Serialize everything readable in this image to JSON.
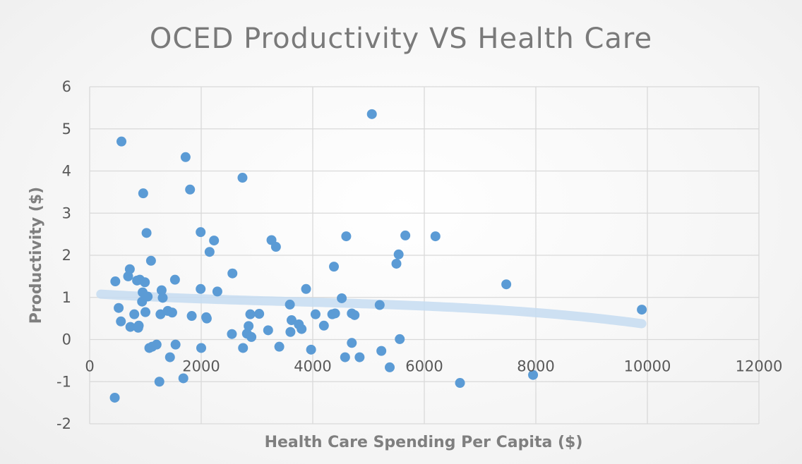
{
  "chart_data": {
    "type": "scatter",
    "title": "OCED Productivity VS Health Care",
    "xlabel": "Health Care Spending Per Capita ($)",
    "ylabel": "Productivity ($)",
    "xlim": [
      0,
      12000
    ],
    "ylim": [
      -2,
      6
    ],
    "xticks": [
      "0",
      "2000",
      "4000",
      "6000",
      "8000",
      "10000",
      "12000"
    ],
    "yticks": [
      "-2",
      "-1",
      "0",
      "1",
      "2",
      "3",
      "4",
      "5",
      "6"
    ],
    "grid": true,
    "legend": "none",
    "colors": {
      "points": "#5b9bd5",
      "trendline": "#c5dcf1"
    },
    "trendline": {
      "type": "polynomial",
      "x_range": [
        200,
        9900
      ]
    },
    "points": [
      [
        450,
        -1.38
      ],
      [
        460,
        1.38
      ],
      [
        520,
        0.75
      ],
      [
        560,
        0.43
      ],
      [
        570,
        4.7
      ],
      [
        690,
        1.5
      ],
      [
        720,
        1.67
      ],
      [
        730,
        0.3
      ],
      [
        800,
        0.6
      ],
      [
        850,
        1.4
      ],
      [
        870,
        0.28
      ],
      [
        880,
        0.33
      ],
      [
        900,
        1.42
      ],
      [
        940,
        0.9
      ],
      [
        950,
        1.12
      ],
      [
        960,
        3.47
      ],
      [
        990,
        1.36
      ],
      [
        1000,
        0.65
      ],
      [
        1020,
        2.53
      ],
      [
        1040,
        1.02
      ],
      [
        1070,
        -0.2
      ],
      [
        1100,
        1.87
      ],
      [
        1120,
        -0.17
      ],
      [
        1200,
        -0.12
      ],
      [
        1250,
        -1.0
      ],
      [
        1270,
        0.6
      ],
      [
        1290,
        1.17
      ],
      [
        1310,
        0.99
      ],
      [
        1400,
        0.68
      ],
      [
        1440,
        -0.42
      ],
      [
        1480,
        0.64
      ],
      [
        1530,
        1.42
      ],
      [
        1540,
        -0.12
      ],
      [
        1680,
        -0.92
      ],
      [
        1720,
        4.33
      ],
      [
        1800,
        3.56
      ],
      [
        1830,
        0.56
      ],
      [
        1990,
        1.2
      ],
      [
        1990,
        2.55
      ],
      [
        2000,
        -0.2
      ],
      [
        2090,
        0.53
      ],
      [
        2100,
        0.5
      ],
      [
        2150,
        2.08
      ],
      [
        2230,
        2.35
      ],
      [
        2290,
        1.14
      ],
      [
        2550,
        0.13
      ],
      [
        2560,
        1.57
      ],
      [
        2740,
        3.84
      ],
      [
        2750,
        -0.2
      ],
      [
        2820,
        0.14
      ],
      [
        2850,
        0.32
      ],
      [
        2880,
        0.6
      ],
      [
        2900,
        0.06
      ],
      [
        3040,
        0.61
      ],
      [
        3200,
        0.22
      ],
      [
        3260,
        2.36
      ],
      [
        3340,
        2.2
      ],
      [
        3400,
        -0.17
      ],
      [
        3590,
        0.83
      ],
      [
        3600,
        0.18
      ],
      [
        3620,
        0.46
      ],
      [
        3750,
        0.36
      ],
      [
        3800,
        0.25
      ],
      [
        3880,
        1.2
      ],
      [
        3970,
        -0.24
      ],
      [
        4050,
        0.6
      ],
      [
        4200,
        0.33
      ],
      [
        4350,
        0.6
      ],
      [
        4380,
        1.73
      ],
      [
        4400,
        0.62
      ],
      [
        4520,
        0.98
      ],
      [
        4580,
        -0.42
      ],
      [
        4600,
        2.45
      ],
      [
        4700,
        0.62
      ],
      [
        4700,
        -0.08
      ],
      [
        4750,
        0.58
      ],
      [
        4840,
        -0.42
      ],
      [
        5060,
        5.35
      ],
      [
        5200,
        0.82
      ],
      [
        5230,
        -0.27
      ],
      [
        5380,
        -0.66
      ],
      [
        5500,
        1.8
      ],
      [
        5540,
        2.02
      ],
      [
        5560,
        0.01
      ],
      [
        5660,
        2.47
      ],
      [
        6200,
        2.45
      ],
      [
        6640,
        -1.03
      ],
      [
        7470,
        1.31
      ],
      [
        7950,
        -0.84
      ],
      [
        9900,
        0.71
      ]
    ]
  }
}
